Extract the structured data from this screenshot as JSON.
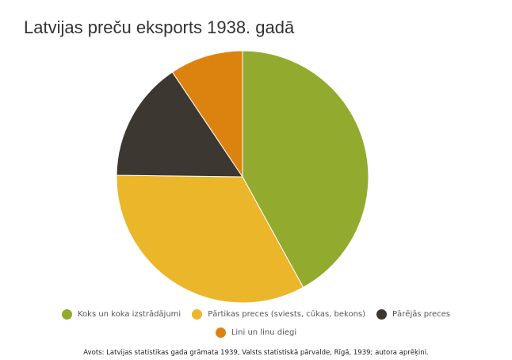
{
  "chart_data": {
    "type": "pie",
    "title": "Latvijas preču eksports 1938. gadā",
    "slices": [
      {
        "label": "Koks un koka izstrādājumi",
        "value": 42.0,
        "color": "#92ab2e"
      },
      {
        "label": "Pārtikas preces (sviests, cūkas, bekons)",
        "value": 33.2,
        "color": "#ecb62b"
      },
      {
        "label": "Pārējās preces",
        "value": 15.4,
        "color": "#3d3731"
      },
      {
        "label": "Lini un linu diegi",
        "value": 9.4,
        "color": "#dc830f"
      }
    ],
    "start_angle_deg": 0,
    "direction": "clockwise",
    "legend_position": "bottom",
    "source": "Avots: Latvijas statistikas gada grāmata 1939, Valsts statistiskā pārvalde, Rīgā, 1939; autora aprēķini."
  }
}
